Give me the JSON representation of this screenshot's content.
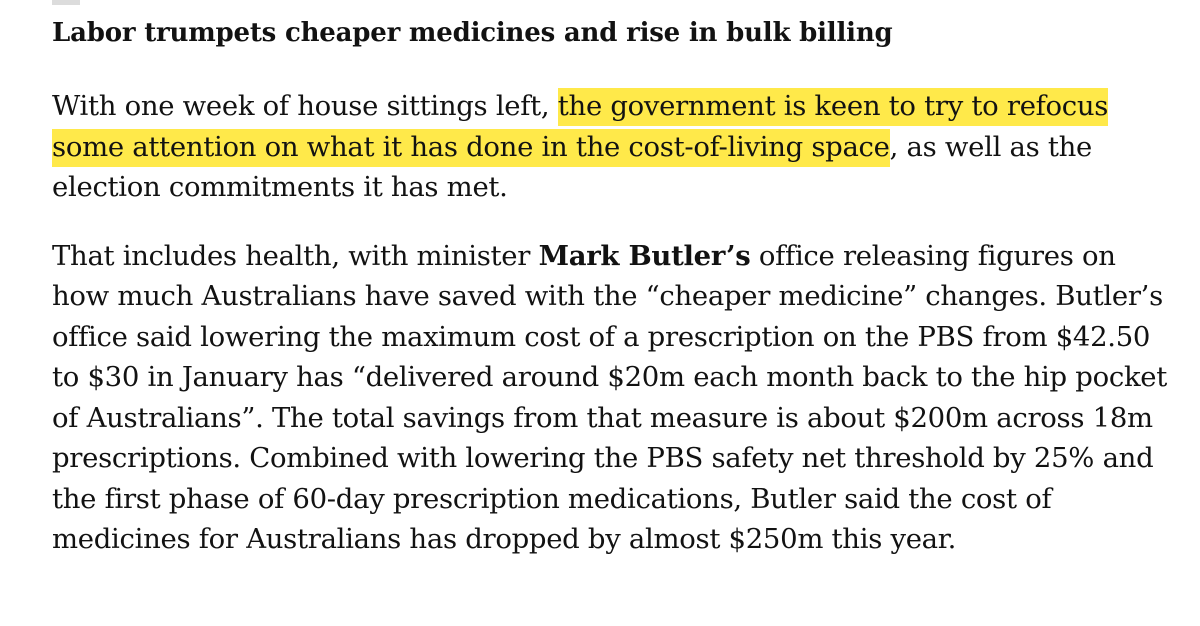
{
  "article": {
    "headline": "Labor trumpets cheaper medicines and rise in bulk billing",
    "paragraph_1": {
      "before_highlight": "With one week of house sittings left, ",
      "highlight": "the government is keen to try to refocus some attention on what it has done in the cost-of-living space",
      "after_highlight": ", as well as the election commitments it has met.",
      "highlight_color": "#ffe94a"
    },
    "paragraph_2": {
      "before_bold": "That includes health, with minister ",
      "bold": "Mark Butler’s",
      "after_bold": " office releasing figures on how much Australians have saved with the “cheaper medicine” changes. Butler’s office said lowering the maximum cost of a prescription on the PBS from $42.50 to $30 in January has “delivered around $20m each month back to the hip pocket of Australians”. The total savings from that measure is about $200m across 18m prescriptions. Combined with lowering the PBS safety net threshold by 25% and the first phase of 60-day prescription medications, Butler said the cost of medicines for Australians has dropped by almost $250m this year."
    }
  }
}
